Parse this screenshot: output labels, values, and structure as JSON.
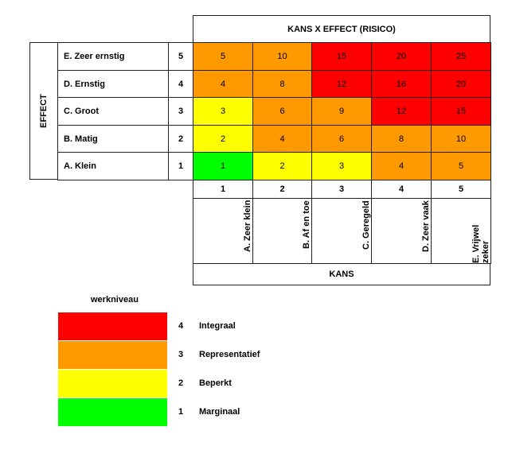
{
  "title": "KANS X EFFECT (RISICO)",
  "effect_label": "EFFECT",
  "kans_label": "KANS",
  "effect_rows": [
    {
      "label": "E. Zeer ernstig",
      "score": "5"
    },
    {
      "label": "D. Ernstig",
      "score": "4"
    },
    {
      "label": "C. Groot",
      "score": "3"
    },
    {
      "label": "B. Matig",
      "score": "2"
    },
    {
      "label": "A. Klein",
      "score": "1"
    }
  ],
  "kans_cols": [
    {
      "label": "A. Zeer klein",
      "score": "1"
    },
    {
      "label": "B. Af en toe",
      "score": "2"
    },
    {
      "label": "C. Geregeld",
      "score": "3"
    },
    {
      "label": "D. Zeer vaak",
      "score": "4"
    },
    {
      "label": "E. Vrijwel zeker",
      "score": "5"
    }
  ],
  "matrix": [
    [
      {
        "v": "5",
        "lvl": 3
      },
      {
        "v": "10",
        "lvl": 3
      },
      {
        "v": "15",
        "lvl": 4
      },
      {
        "v": "20",
        "lvl": 4
      },
      {
        "v": "25",
        "lvl": 4
      }
    ],
    [
      {
        "v": "4",
        "lvl": 3
      },
      {
        "v": "8",
        "lvl": 3
      },
      {
        "v": "12",
        "lvl": 4
      },
      {
        "v": "16",
        "lvl": 4
      },
      {
        "v": "20",
        "lvl": 4
      }
    ],
    [
      {
        "v": "3",
        "lvl": 2
      },
      {
        "v": "6",
        "lvl": 3
      },
      {
        "v": "9",
        "lvl": 3
      },
      {
        "v": "12",
        "lvl": 4
      },
      {
        "v": "15",
        "lvl": 4
      }
    ],
    [
      {
        "v": "2",
        "lvl": 2
      },
      {
        "v": "4",
        "lvl": 3
      },
      {
        "v": "6",
        "lvl": 3
      },
      {
        "v": "8",
        "lvl": 3
      },
      {
        "v": "10",
        "lvl": 3
      }
    ],
    [
      {
        "v": "1",
        "lvl": 1
      },
      {
        "v": "2",
        "lvl": 2
      },
      {
        "v": "3",
        "lvl": 2
      },
      {
        "v": "4",
        "lvl": 3
      },
      {
        "v": "5",
        "lvl": 3
      }
    ]
  ],
  "colors": {
    "4": "#ff0000",
    "3": "#ff9900",
    "2": "#ffff00",
    "1": "#00ff00"
  },
  "legend": {
    "title": "werkniveau",
    "items": [
      {
        "level": "4",
        "label": "Integraal",
        "color": "#ff0000"
      },
      {
        "level": "3",
        "label": "Representatief",
        "color": "#ff9900"
      },
      {
        "level": "2",
        "label": "Beperkt",
        "color": "#ffff00"
      },
      {
        "level": "1",
        "label": "Marginaal",
        "color": "#00ff00"
      }
    ]
  }
}
